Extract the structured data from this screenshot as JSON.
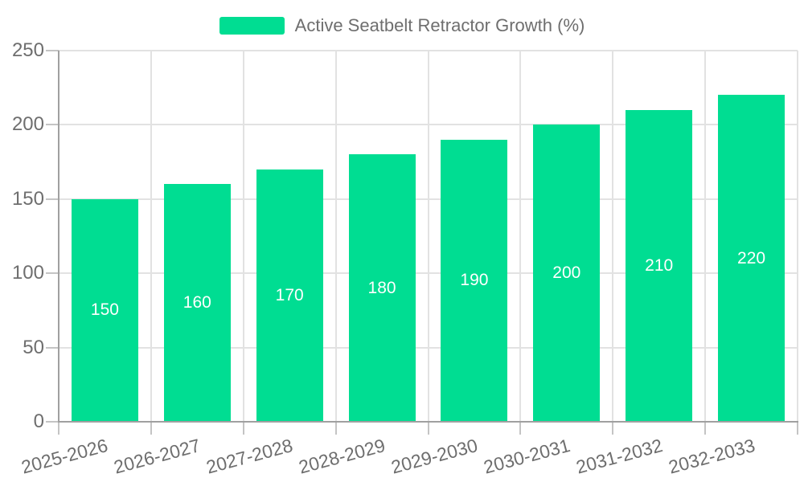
{
  "chart_data": {
    "type": "bar",
    "title": "Active Seatbelt Retractor Growth (%)",
    "categories": [
      "2025-2026",
      "2026-2027",
      "2027-2028",
      "2028-2029",
      "2029-2030",
      "2030-2031",
      "2031-2032",
      "2032-2033"
    ],
    "values": [
      150,
      160,
      170,
      180,
      190,
      200,
      210,
      220
    ],
    "bar_value_labels": [
      "150",
      "160",
      "170",
      "180",
      "190",
      "200",
      "210",
      "220"
    ],
    "xlabel": "",
    "ylabel": "",
    "ylim": [
      0,
      250
    ],
    "yticks": [
      0,
      50,
      100,
      150,
      200,
      250
    ],
    "grid": true,
    "legend_position": "top-center",
    "legend_items": [
      {
        "label": "Active Seatbelt Retractor Growth (%)",
        "swatch_color": "#00dd92"
      }
    ],
    "colors": {
      "bar": "#00dd92",
      "bar_label": "#ffffff",
      "axis_text": "#6e6e6e",
      "legend_text": "#6e6e6e",
      "grid_line": "#e2e2e2",
      "tick_mark": "#c4c4c4",
      "axis_line": "#a0a0a0",
      "background": "#ffffff"
    }
  }
}
